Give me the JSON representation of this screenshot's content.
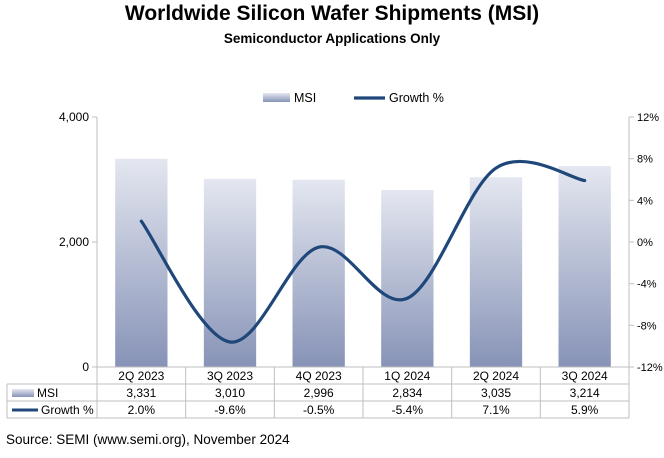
{
  "title": "Worldwide Silicon Wafer Shipments (MSI)",
  "subtitle": "Semiconductor Applications Only",
  "source": "Source: SEMI (www.semi.org), November 2024",
  "chart_data": {
    "type": "bar",
    "categories": [
      "2Q 2023",
      "3Q 2023",
      "4Q 2023",
      "1Q 2024",
      "2Q 2024",
      "3Q 2024"
    ],
    "series": [
      {
        "name": "MSI",
        "type": "bar",
        "axis": "left",
        "values": [
          3331,
          3010,
          2996,
          2834,
          3035,
          3214
        ],
        "labels": [
          "3,331",
          "3,010",
          "2,996",
          "2,834",
          "3,035",
          "3,214"
        ]
      },
      {
        "name": "Growth %",
        "type": "line",
        "axis": "right",
        "values": [
          2.0,
          -9.6,
          -0.5,
          -5.4,
          7.1,
          5.9
        ],
        "labels": [
          "2.0%",
          "-9.6%",
          "-0.5%",
          "-5.4%",
          "7.1%",
          "5.9%"
        ]
      }
    ],
    "y_left": {
      "ylim": [
        0,
        4000
      ],
      "ticks": [
        0,
        2000,
        4000
      ],
      "tick_labels": [
        "0",
        "2,000",
        "4,000"
      ]
    },
    "y_right": {
      "ylim": [
        -12,
        12
      ],
      "ticks": [
        -12,
        -8,
        -4,
        0,
        4,
        8,
        12
      ],
      "tick_labels": [
        "-12%",
        "-8%",
        "-4%",
        "0%",
        "4%",
        "8%",
        "12%"
      ]
    },
    "legend": {
      "placement": "top-center",
      "entries": [
        "MSI",
        "Growth %"
      ]
    },
    "data_table": true,
    "grid": false,
    "colors": {
      "bar_top": "#e4e7f0",
      "bar_bottom": "#8793b7",
      "line": "#1f477a",
      "axis": "#bfbfbf"
    }
  }
}
